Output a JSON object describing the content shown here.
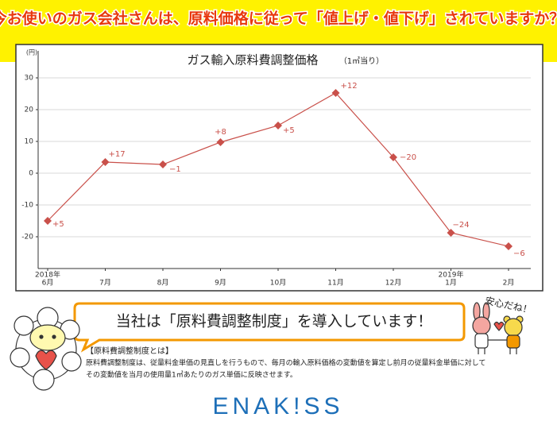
{
  "header": {
    "title": "今お使いのガス会社さんは、原料価格に従って「値上げ・値下げ」されていますか？"
  },
  "chart_data": {
    "type": "line",
    "title": "ガス輸入原料費調整価格",
    "subtitle": "（1㎥当り）",
    "y_unit": "(円)",
    "categories": [
      "6月",
      "7月",
      "8月",
      "9月",
      "10月",
      "11月",
      "12月",
      "1月",
      "2月"
    ],
    "category_years": [
      "2018年",
      null,
      null,
      null,
      null,
      null,
      null,
      "2019年",
      null
    ],
    "series": [
      {
        "name": "ガス輸入原料費調整価格",
        "color": "#c9504a",
        "values": [
          -15,
          3.5,
          2.75,
          9.75,
          15,
          25.25,
          5,
          -18.75,
          -23
        ],
        "annotations": [
          "+5",
          "+17",
          "−1",
          "+8",
          "+5",
          "+12",
          "−20",
          "−24",
          "−6"
        ]
      }
    ],
    "ylim": [
      -30,
      38.5
    ],
    "yticks": [
      -20,
      -10,
      0,
      10,
      20,
      30
    ],
    "grid": true
  },
  "callout": {
    "text": "当社は「原料費調整制度」を導入しています！"
  },
  "note": {
    "heading": "【原料費調整制度とは】",
    "lines": [
      "原料費調整制度は、従量料金単価の見直しを行うもので、毎月の輸入原料価格の変動値を算定し前月の従量料金単価に対して",
      "その変動値を当月の使用量1㎥あたりのガス単価に反映させます。"
    ]
  },
  "mascot": {
    "speech": "安心だね！"
  },
  "logo": {
    "text": "ENAK!SS"
  }
}
